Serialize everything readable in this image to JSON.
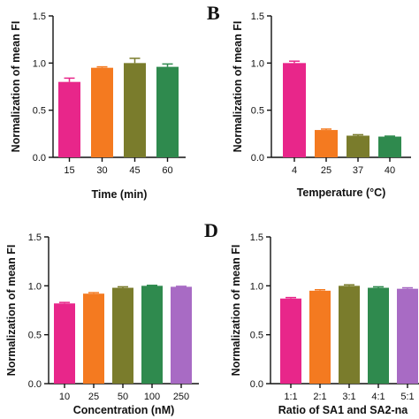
{
  "colors": {
    "magenta": "#e8268a",
    "orange": "#f47a20",
    "olive": "#7a7c2c",
    "green": "#2f8a4e",
    "purple": "#a86bc4",
    "axis": "#111111"
  },
  "chart_data": [
    {
      "panel": "",
      "type": "bar",
      "ylabel": "Normalization of mean FI",
      "xlabel": "Time (min)",
      "ylim": [
        0,
        1.5
      ],
      "yticks": [
        "0.0",
        "0.5",
        "1.0",
        "1.5"
      ],
      "categories": [
        "15",
        "30",
        "45",
        "60"
      ],
      "values": [
        0.8,
        0.95,
        1.0,
        0.96
      ],
      "errors": [
        0.04,
        0.01,
        0.05,
        0.03
      ],
      "bar_colors": [
        "#e8268a",
        "#f47a20",
        "#7a7c2c",
        "#2f8a4e"
      ]
    },
    {
      "panel": "B",
      "type": "bar",
      "ylabel": "Normalization of mean FI",
      "xlabel": "Temperature (°C)",
      "ylim": [
        0,
        1.5
      ],
      "yticks": [
        "0.0",
        "0.5",
        "1.0",
        "1.5"
      ],
      "categories": [
        "4",
        "25",
        "37",
        "40"
      ],
      "values": [
        1.0,
        0.29,
        0.23,
        0.22
      ],
      "errors": [
        0.02,
        0.01,
        0.01,
        0.005
      ],
      "bar_colors": [
        "#e8268a",
        "#f47a20",
        "#7a7c2c",
        "#2f8a4e"
      ]
    },
    {
      "panel": "",
      "type": "bar",
      "ylabel": "Normalization of mean FI",
      "xlabel": "Concentration (nM)",
      "ylim": [
        0,
        1.5
      ],
      "yticks": [
        "0.0",
        "0.5",
        "1.0",
        "1.5"
      ],
      "categories": [
        "10",
        "25",
        "50",
        "100",
        "250"
      ],
      "values": [
        0.82,
        0.92,
        0.98,
        1.0,
        0.99
      ],
      "errors": [
        0.01,
        0.01,
        0.01,
        0.005,
        0.005
      ],
      "bar_colors": [
        "#e8268a",
        "#f47a20",
        "#7a7c2c",
        "#2f8a4e",
        "#a86bc4"
      ]
    },
    {
      "panel": "D",
      "type": "bar",
      "ylabel": "Normalization of mean FI",
      "xlabel": "Ratio of SA1 and SA2-na",
      "ylim": [
        0,
        1.5
      ],
      "yticks": [
        "0.0",
        "0.5",
        "1.0",
        "1.5"
      ],
      "categories": [
        "1:1",
        "2:1",
        "3:1",
        "4:1",
        "5:1"
      ],
      "values": [
        0.87,
        0.95,
        1.0,
        0.98,
        0.97
      ],
      "errors": [
        0.01,
        0.01,
        0.01,
        0.01,
        0.01
      ],
      "bar_colors": [
        "#e8268a",
        "#f47a20",
        "#7a7c2c",
        "#2f8a4e",
        "#a86bc4"
      ]
    }
  ]
}
